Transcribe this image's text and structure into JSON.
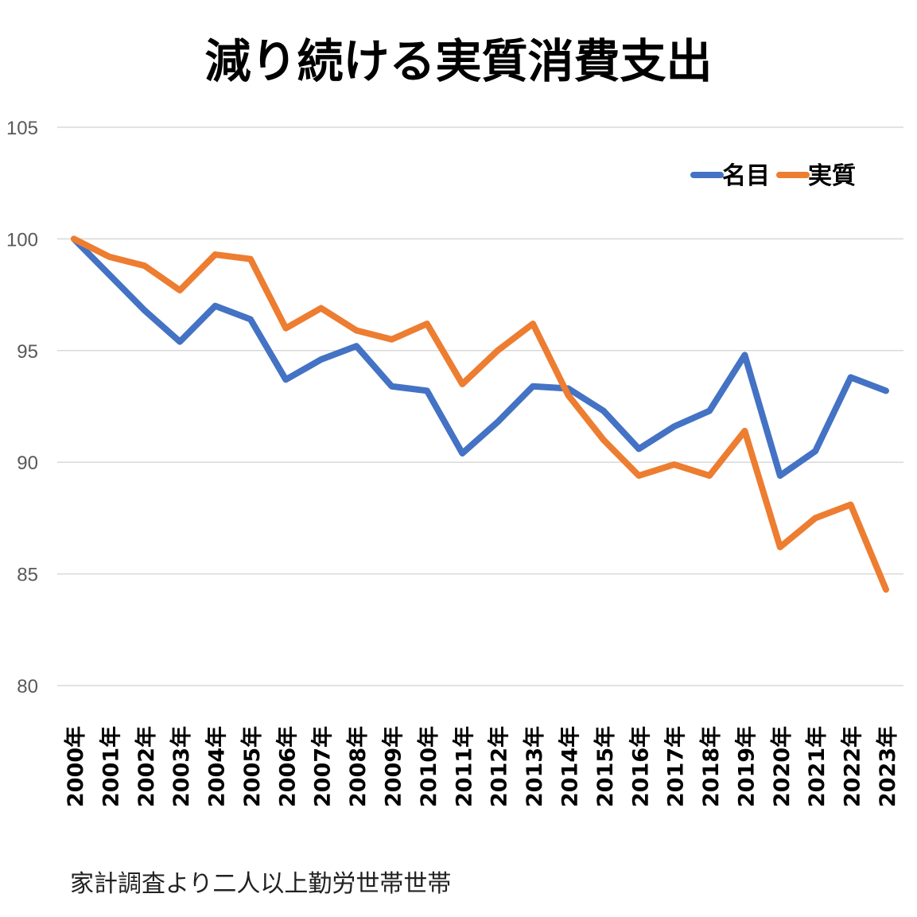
{
  "chart_data": {
    "type": "line",
    "title": "減り続ける実質消費支出",
    "xlabel": "",
    "ylabel": "",
    "ylim": [
      80,
      105
    ],
    "yticks": [
      80,
      85,
      90,
      95,
      100,
      105
    ],
    "grid": true,
    "legend": "top-right",
    "categories": [
      "2000年",
      "2001年",
      "2002年",
      "2003年",
      "2004年",
      "2005年",
      "2006年",
      "2007年",
      "2008年",
      "2009年",
      "2010年",
      "2011年",
      "2012年",
      "2013年",
      "2014年",
      "2015年",
      "2016年",
      "2017年",
      "2018年",
      "2019年",
      "2020年",
      "2021年",
      "2022年",
      "2023年"
    ],
    "series": [
      {
        "name": "名目",
        "color": "#4472C4",
        "values": [
          100,
          98.4,
          96.8,
          95.4,
          97.0,
          96.4,
          93.7,
          94.6,
          95.2,
          93.4,
          93.2,
          90.4,
          91.8,
          93.4,
          93.3,
          92.3,
          90.6,
          91.6,
          92.3,
          94.8,
          89.4,
          90.5,
          93.8,
          93.2
        ]
      },
      {
        "name": "実質",
        "color": "#ED7D31",
        "values": [
          100,
          99.2,
          98.8,
          97.7,
          99.3,
          99.1,
          96.0,
          96.9,
          95.9,
          95.5,
          96.2,
          93.5,
          95.0,
          96.2,
          93.0,
          91.0,
          89.4,
          89.9,
          89.4,
          91.4,
          86.2,
          87.5,
          88.1,
          84.3
        ]
      }
    ]
  },
  "note": "家計調査より二人以上勤労世帯世帯"
}
